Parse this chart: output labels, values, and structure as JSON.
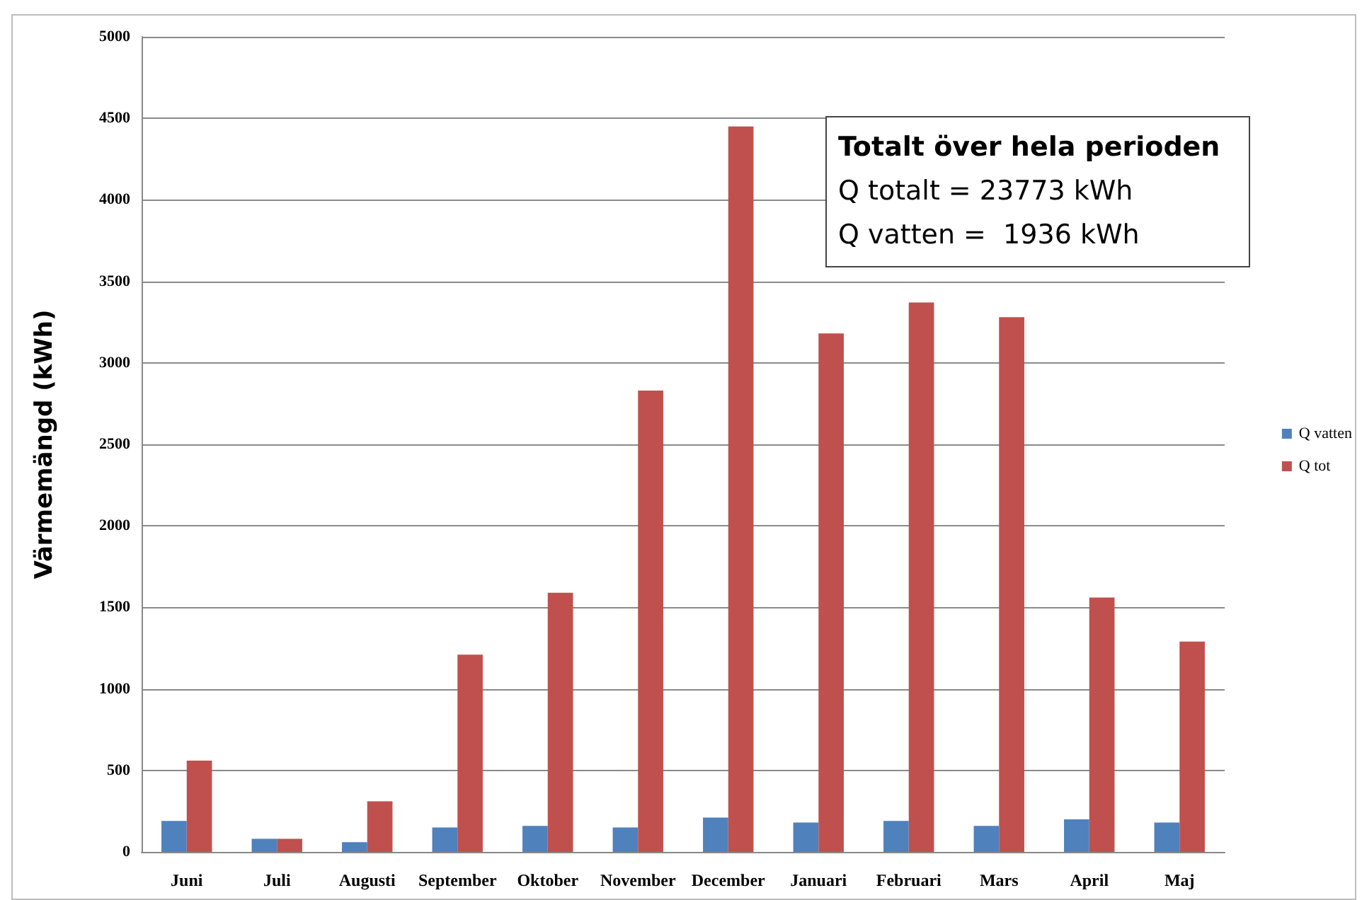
{
  "chart_data": {
    "type": "bar",
    "ylabel": "Värmemängd (kWh)",
    "categories": [
      "Juni",
      "Juli",
      "Augusti",
      "September",
      "Oktober",
      "November",
      "December",
      "Januari",
      "Februari",
      "Mars",
      "April",
      "Maj"
    ],
    "series": [
      {
        "name": "Q vatten",
        "color": "#4f81bd",
        "values": [
          190,
          80,
          60,
          150,
          160,
          150,
          210,
          180,
          190,
          160,
          200,
          180
        ]
      },
      {
        "name": "Q tot",
        "color": "#c0504d",
        "values": [
          560,
          80,
          310,
          1210,
          1590,
          2830,
          4450,
          3180,
          3370,
          3280,
          1560,
          1290
        ]
      }
    ],
    "ylim": [
      0,
      5000
    ],
    "yticks": [
      0,
      500,
      1000,
      1500,
      2000,
      2500,
      3000,
      3500,
      4000,
      4500,
      5000
    ],
    "grid": "y",
    "legend": "right",
    "annotations": [
      "Totalt över hela perioden",
      "Q totalt = 23773 kWh",
      "Q vatten =  1936 kWh"
    ]
  }
}
